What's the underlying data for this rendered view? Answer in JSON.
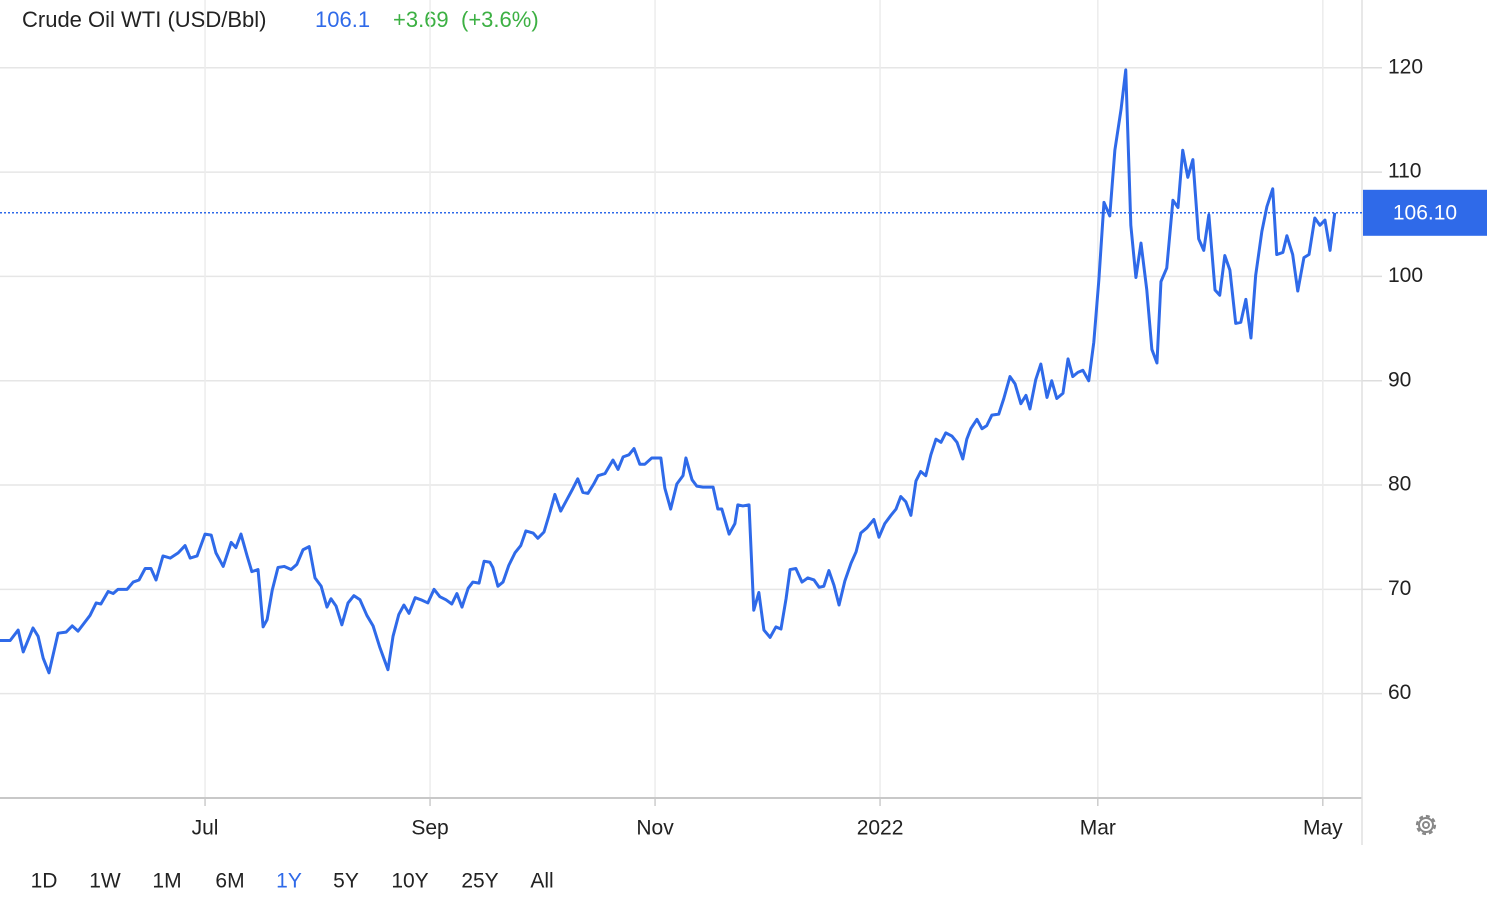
{
  "chart_data": {
    "type": "line",
    "title": "Crude Oil WTI (USD/Bbl)",
    "last_price": 106.1,
    "change": {
      "value": 3.69,
      "label": "+3.69"
    },
    "change_pct": {
      "value": 3.6,
      "label": "(+3.6%)"
    },
    "price_line": {
      "value": 106.1,
      "label": "106.10"
    },
    "x": [
      -56.5,
      -53.7,
      -51.5,
      -50.1,
      -47.4,
      -46.0,
      -44.6,
      -43.0,
      -40.5,
      -38.3,
      -36.6,
      -35.0,
      -31.7,
      -30.0,
      -28.7,
      -26.7,
      -25.3,
      -24.0,
      -21.5,
      -19.8,
      -18.2,
      -16.5,
      -14.9,
      -13.5,
      -11.6,
      -9.6,
      -7.4,
      -5.5,
      -4.1,
      -2.2,
      0,
      1.7,
      3.0,
      5.0,
      7.2,
      8.5,
      9.9,
      11.6,
      12.9,
      14.6,
      16.0,
      17.1,
      18.5,
      20.1,
      21.8,
      23.7,
      25.3,
      27.0,
      28.7,
      30.3,
      32.0,
      33.6,
      34.7,
      36.1,
      37.7,
      39.4,
      41.0,
      42.7,
      44.6,
      46.3,
      48.2,
      50.4,
      51.8,
      53.4,
      54.8,
      56.2,
      57.9,
      59.5,
      61.4,
      63.1,
      64.7,
      66.4,
      68.0,
      69.4,
      70.8,
      72.5,
      73.8,
      75.5,
      76.9,
      78.5,
      79.3,
      80.7,
      82.1,
      83.7,
      85.4,
      87.0,
      88.4,
      90.4,
      91.7,
      93.4,
      94.7,
      96.4,
      98.0,
      99.7,
      101.1,
      102.7,
      104.1,
      105.5,
      107.1,
      108.3,
      110.2,
      112.4,
      113.8,
      115.2,
      116.8,
      118.2,
      119.8,
      121.2,
      123.1,
      125.6,
      126.7,
      128.3,
      130.0,
      131.7,
      132.5,
      134.2,
      135.5,
      137.2,
      140.0,
      141.3,
      142.4,
      144.4,
      146.0,
      146.8,
      148.2,
      149.9,
      151.2,
      152.6,
      154.0,
      155.7,
      157.3,
      158.7,
      160.1,
      161.2,
      162.8,
      164.5,
      166.1,
      167.8,
      169.2,
      170.5,
      171.9,
      173.3,
      174.7,
      176.3,
      178.0,
      179.4,
      180.7,
      182.4,
      184.3,
      185.7,
      187.3,
      189.0,
      190.4,
      191.7,
      193.1,
      194.5,
      195.9,
      197.2,
      198.6,
      200.0,
      201.4,
      202.8,
      204.1,
      205.8,
      207.2,
      208.8,
      209.9,
      211.0,
      212.7,
      214.1,
      215.4,
      216.8,
      218.7,
      220.1,
      221.8,
      223.2,
      224.8,
      226.2,
      227.3,
      228.9,
      230.3,
      232.0,
      233.3,
      234.7,
      236.4,
      237.8,
      239.1,
      240.5,
      241.9,
      243.5,
      244.9,
      246.3,
      247.7,
      249.3,
      250.7,
      252.4,
      253.7,
      255.1,
      256.5,
      257.9,
      259.5,
      260.9,
      262.3,
      263.4,
      265.0,
      266.7,
      268.1,
      269.4,
      270.8,
      272.2,
      273.8,
      275.2,
      276.6,
      278.3,
      279.6,
      281.0,
      282.4,
      284.0,
      285.4,
      286.8,
      288.2,
      289.5,
      291.2,
      292.6,
      294.2,
      295.3,
      297.0,
      298.1,
      299.7,
      301.1,
      302.8,
      304.2,
      305.8,
      307.2,
      308.6,
      310.0,
      311.3
    ],
    "series": [
      {
        "color": "#2f6ae9",
        "values": [
          65.1,
          65.1,
          66.1,
          64.0,
          66.3,
          65.5,
          63.4,
          62.0,
          65.8,
          65.9,
          66.5,
          66.0,
          67.5,
          68.7,
          68.6,
          69.8,
          69.6,
          70.0,
          70.0,
          70.7,
          70.9,
          72.0,
          72.0,
          70.9,
          73.2,
          73.0,
          73.5,
          74.2,
          73.0,
          73.2,
          75.3,
          75.2,
          73.5,
          72.2,
          74.5,
          74.0,
          75.3,
          73.2,
          71.7,
          71.9,
          66.4,
          67.1,
          69.9,
          72.1,
          72.2,
          71.9,
          72.4,
          73.8,
          74.1,
          71.1,
          70.3,
          68.3,
          69.1,
          68.4,
          66.6,
          68.7,
          69.4,
          69.0,
          67.5,
          66.5,
          64.4,
          62.3,
          65.5,
          67.6,
          68.5,
          67.7,
          69.2,
          69.0,
          68.7,
          70.0,
          69.3,
          69.0,
          68.6,
          69.6,
          68.3,
          70.1,
          70.7,
          70.6,
          72.7,
          72.6,
          72.1,
          70.3,
          70.7,
          72.3,
          73.5,
          74.2,
          75.6,
          75.4,
          74.9,
          75.5,
          77.0,
          79.1,
          77.5,
          78.6,
          79.5,
          80.6,
          79.3,
          79.2,
          80.1,
          80.9,
          81.1,
          82.4,
          81.5,
          82.7,
          82.9,
          83.5,
          82.0,
          82.0,
          82.6,
          82.6,
          79.7,
          77.7,
          80.1,
          80.9,
          82.6,
          80.5,
          79.9,
          79.8,
          79.8,
          77.7,
          77.7,
          75.3,
          76.3,
          78.1,
          78.0,
          78.1,
          68.0,
          69.7,
          66.1,
          65.4,
          66.4,
          66.2,
          69.1,
          71.9,
          72.0,
          70.7,
          71.1,
          70.9,
          70.2,
          70.3,
          71.8,
          70.4,
          68.5,
          70.8,
          72.5,
          73.6,
          75.4,
          75.9,
          76.7,
          75.0,
          76.3,
          77.1,
          77.7,
          78.9,
          78.4,
          77.1,
          80.4,
          81.3,
          80.9,
          82.9,
          84.4,
          84.1,
          85.0,
          84.7,
          84.1,
          82.5,
          84.4,
          85.4,
          86.3,
          85.4,
          85.7,
          86.7,
          86.8,
          88.3,
          90.4,
          89.7,
          87.8,
          88.6,
          87.3,
          90.1,
          91.6,
          88.4,
          90.0,
          88.3,
          88.8,
          92.1,
          90.4,
          90.8,
          91.0,
          90.0,
          93.7,
          99.7,
          107.1,
          105.8,
          112.1,
          116.0,
          119.8,
          104.9,
          99.9,
          103.2,
          98.7,
          93.0,
          91.7,
          99.5,
          100.8,
          107.3,
          106.6,
          112.1,
          109.5,
          111.2,
          103.6,
          102.5,
          105.9,
          98.7,
          98.2,
          102.0,
          100.6,
          95.5,
          95.6,
          97.8,
          94.1,
          100.1,
          104.3,
          106.7,
          108.4,
          102.1,
          102.3,
          103.9,
          102.1,
          98.6,
          101.8,
          102.1,
          105.6,
          104.9,
          105.4,
          102.5,
          106.1
        ]
      }
    ],
    "xlim": [
      -56.5,
      318.8
    ],
    "xticks": [
      {
        "value": 0,
        "label": "Jul"
      },
      {
        "value": 62,
        "label": "Sep"
      },
      {
        "value": 124,
        "label": "Nov"
      },
      {
        "value": 186,
        "label": "2022"
      },
      {
        "value": 246,
        "label": "Mar"
      },
      {
        "value": 308,
        "label": "May"
      }
    ],
    "ylim": [
      50,
      126.5
    ],
    "yticks": [
      60,
      70,
      80,
      90,
      100,
      110,
      120
    ],
    "grid": true
  },
  "ui": {
    "ranges": [
      "1D",
      "1W",
      "1M",
      "6M",
      "1Y",
      "5Y",
      "10Y",
      "25Y",
      "All"
    ],
    "selected_range": "1Y"
  }
}
